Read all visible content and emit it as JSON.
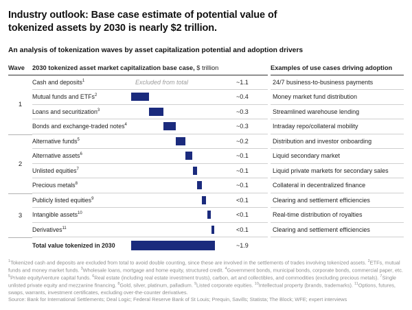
{
  "title": "Industry outlook: Base case estimate of potential value of tokenized assets by 2030 is nearly $2 trillion.",
  "subtitle": "An analysis of tokenization waves by asset capitalization potential and adoption drivers",
  "colors": {
    "bar": "#1b2b7d",
    "divider": "#cfcfcf",
    "header_rule": "#2e2e2e",
    "muted_italic": "#9b9b9b",
    "footnote": "#8e8e8e"
  },
  "table": {
    "wave_header": "Wave",
    "main_header_bold": "2030 tokenized asset market capitalization base case,",
    "main_header_unit": " $ trillion",
    "right_header": "Examples of use cases driving adoption",
    "waves": [
      {
        "label": "1",
        "rows": [
          {
            "label": "Cash and deposits",
            "sup": "1",
            "note": "Excluded from total",
            "value": "~1.1",
            "bar": null,
            "example": "24/7 business-to-business payments"
          },
          {
            "label": "Mutual funds and ETFs",
            "sup": "2",
            "value": "~0.4",
            "bar": [
              0.0,
              0.4
            ],
            "example": "Money market fund distribution"
          },
          {
            "label": "Loans and securitization",
            "sup": "3",
            "value": "~0.3",
            "bar": [
              0.4,
              0.73
            ],
            "example": "Streamlined warehouse lending"
          },
          {
            "label": "Bonds and exchange-traded notes",
            "sup": "4",
            "value": "~0.3",
            "bar": [
              0.73,
              1.01
            ],
            "example": "Intraday repo/collateral mobility"
          }
        ]
      },
      {
        "label": "2",
        "rows": [
          {
            "label": "Alternative funds",
            "sup": "5",
            "value": "~0.2",
            "bar": [
              1.01,
              1.23
            ],
            "example": "Distribution and investor onboarding"
          },
          {
            "label": "Alternative assets",
            "sup": "6",
            "value": "~0.1",
            "bar": [
              1.23,
              1.39
            ],
            "example": "Liquid secondary market"
          },
          {
            "label": "Unlisted equities",
            "sup": "7",
            "value": "~0.1",
            "bar": [
              1.4,
              1.5
            ],
            "example": "Liquid private markets for secondary sales"
          },
          {
            "label": "Precious metals",
            "sup": "8",
            "value": "~0.1",
            "bar": [
              1.5,
              1.61
            ],
            "example": "Collateral in decentralized finance"
          }
        ]
      },
      {
        "label": "3",
        "rows": [
          {
            "label": "Publicly listed equities",
            "sup": "9",
            "value": "<0.1",
            "bar": [
              1.61,
              1.7
            ],
            "example": "Clearing and settlement efficiencies"
          },
          {
            "label": "Intangible assets",
            "sup": "10",
            "value": "<0.1",
            "bar": [
              1.73,
              1.81
            ],
            "example": "Real-time distribution of royalties"
          },
          {
            "label": "Derivatives",
            "sup": "11",
            "value": "<0.1",
            "bar": [
              1.82,
              1.88
            ],
            "example": "Clearing and settlement efficiencies"
          }
        ]
      }
    ],
    "total": {
      "label": "Total value tokenized in 2030",
      "value": "~1.9",
      "bar": [
        0.0,
        1.9
      ]
    }
  },
  "chart_data": {
    "type": "bar",
    "subtype": "waterfall",
    "title": "2030 tokenized asset market capitalization base case, $ trillion",
    "categories": [
      "Cash and deposits",
      "Mutual funds and ETFs",
      "Loans and securitization",
      "Bonds and exchange-traded notes",
      "Alternative funds",
      "Alternative assets",
      "Unlisted equities",
      "Precious metals",
      "Publicly listed equities",
      "Intangible assets",
      "Derivatives",
      "Total value tokenized in 2030"
    ],
    "values": [
      1.1,
      0.4,
      0.3,
      0.3,
      0.2,
      0.1,
      0.1,
      0.1,
      0.1,
      0.1,
      0.1,
      1.9
    ],
    "value_labels": [
      "~1.1",
      "~0.4",
      "~0.3",
      "~0.3",
      "~0.2",
      "~0.1",
      "~0.1",
      "~0.1",
      "<0.1",
      "<0.1",
      "<0.1",
      "~1.9"
    ],
    "xlim": [
      0,
      1.9
    ],
    "notes": "Cash and deposits shown as 'Excluded from total' (no bar); remaining bars cascade cumulatively left-to-right to the total of ~1.9",
    "legend": "none",
    "grid": "off"
  },
  "footnotes": [
    {
      "sup": "1",
      "text": "Tokenized cash and deposits are excluded from total to avoid double counting, since these are involved in the settlements of trades involving tokenized assets."
    },
    {
      "sup": "2",
      "text": "ETFs, mutual funds and money market funds."
    },
    {
      "sup": "3",
      "text": "Wholesale loans, mortgage and home equity, structured credit."
    },
    {
      "sup": "4",
      "text": "Government bonds, municipal bonds, corporate bonds, commercial paper, etc."
    },
    {
      "sup": "5",
      "text": "Private equity/venture capital funds."
    },
    {
      "sup": "6",
      "text": "Real estate (including real estate investment trusts), carbon, art and collectibles, and commodities (excluding precious metals)."
    },
    {
      "sup": "7",
      "text": "Single unlisted private equity and mezzanine financing."
    },
    {
      "sup": "8",
      "text": "Gold, silver, platinum, palladium."
    },
    {
      "sup": "9",
      "text": "Listed corporate equities."
    },
    {
      "sup": "10",
      "text": "Intellectual property (brands, trademarks)."
    },
    {
      "sup": "11",
      "text": "Options, futures, swaps, warrants, investment certificates, excluding over-the-counter derivatives."
    }
  ],
  "source": "Source: Bank for International Settlements; Deal Logic; Federal Reserve Bank of St Louis; Prequin, Savills; Statista; The Block; WFE; expert interviews"
}
